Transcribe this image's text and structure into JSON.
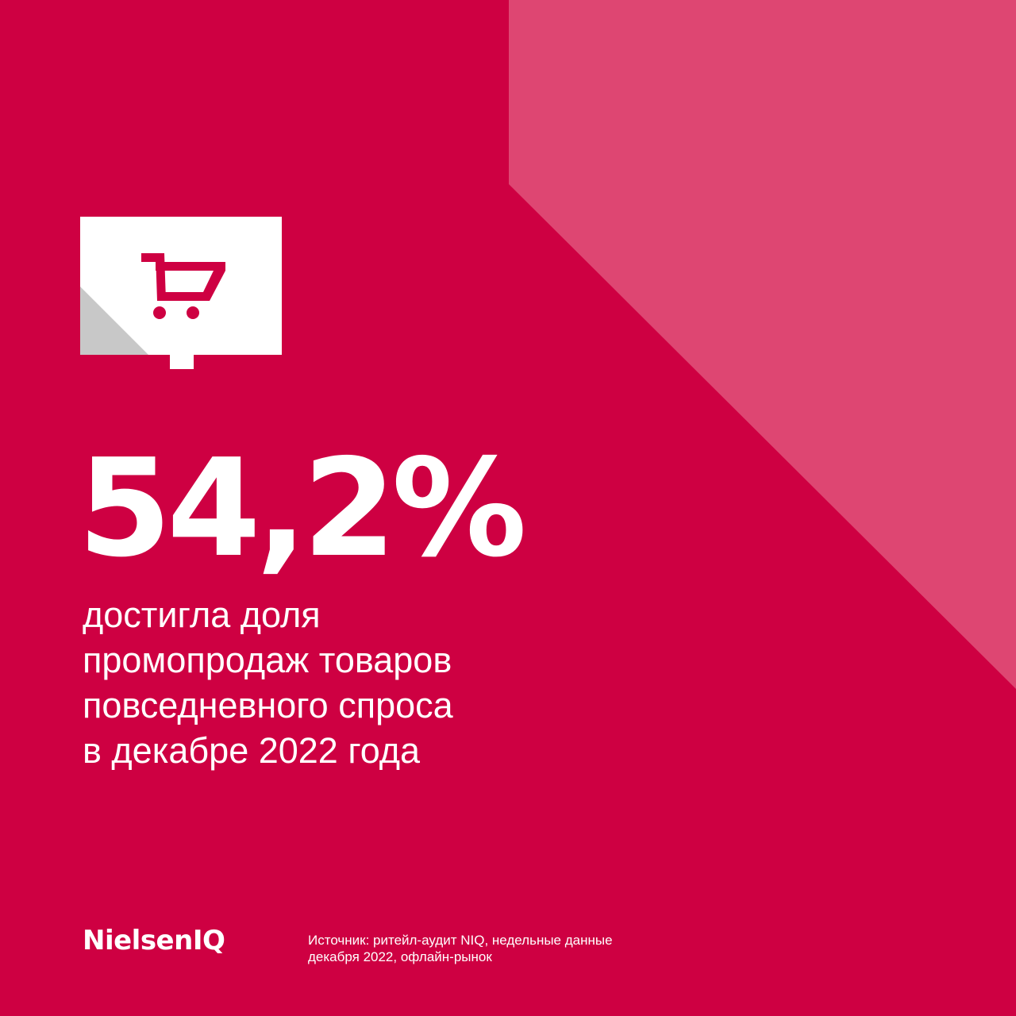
{
  "colors": {
    "background": "#CE0042",
    "accent_shape": "#DE4672",
    "card": "#FFFFFF",
    "card_fold": "#C8C8C8",
    "icon": "#CE0042",
    "text": "#FFFFFF"
  },
  "icon": {
    "name": "shopping-cart-icon"
  },
  "headline": {
    "value": "54,2%"
  },
  "description": {
    "lines": [
      "достигла доля",
      "промопродаж товаров",
      "повседневного спроса",
      "в декабре 2022 года"
    ]
  },
  "footer": {
    "brand": "NielsenIQ",
    "source_lines": [
      "Источник: ритейл-аудит NIQ, недельные данные",
      "декабря 2022, офлайн-рынок"
    ]
  }
}
